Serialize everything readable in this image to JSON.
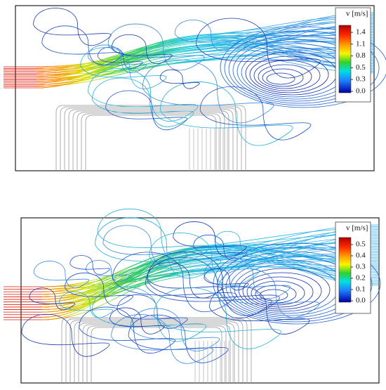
{
  "panels": [
    {
      "colorbar": {
        "label": "v [m/s]",
        "ticks": [
          "1.4",
          "1.1",
          "0.8",
          "0.5",
          "0.3",
          "0.0"
        ]
      }
    },
    {
      "colorbar": {
        "label": "v [m/s]",
        "ticks": [
          "0.5",
          "0.4",
          "0.3",
          "0.2",
          "0.1",
          "0.0"
        ]
      }
    }
  ]
}
